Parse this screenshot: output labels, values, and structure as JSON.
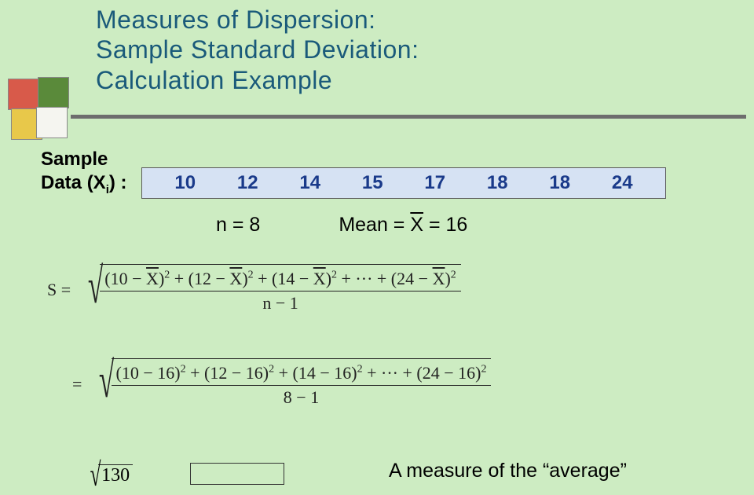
{
  "title": {
    "line1": "Measures of Dispersion:",
    "line2": "Sample Standard Deviation:",
    "line3": "Calculation Example",
    "color": "#1a5a7a",
    "fontsize": 32
  },
  "decoration": {
    "colors": {
      "red": "#d85a4a",
      "green": "#5a8a3a",
      "yellow": "#e8c84a",
      "white": "#f5f5f0"
    }
  },
  "background_color": "#cdecc2",
  "divider_color": "#6d6d6d",
  "sample_label": {
    "line1": "Sample",
    "line2_prefix": "Data  (X",
    "line2_sub": "i",
    "line2_suffix": ") :"
  },
  "data_values": [
    "10",
    "12",
    "14",
    "15",
    "17",
    "18",
    "18",
    "24"
  ],
  "data_box": {
    "bg": "#d6e2f3",
    "border": "#5a5a5a",
    "value_color": "#1a3a8a"
  },
  "stats": {
    "n_label": "n = 8",
    "mean_prefix": "Mean = ",
    "mean_x": "X",
    "mean_suffix": " = 16"
  },
  "formula1": {
    "lhs": "S",
    "terms": [
      {
        "a": "10",
        "b": "X",
        "overline": true
      },
      {
        "a": "12",
        "b": "X",
        "overline": true
      },
      {
        "a": "14",
        "b": "X",
        "overline": true
      }
    ],
    "last": {
      "a": "24",
      "b": "X",
      "overline": true
    },
    "denominator": "n − 1"
  },
  "formula2": {
    "terms": [
      {
        "a": "10",
        "b": "16"
      },
      {
        "a": "12",
        "b": "16"
      },
      {
        "a": "14",
        "b": "16"
      }
    ],
    "last": {
      "a": "24",
      "b": "16"
    },
    "denominator": "8 − 1"
  },
  "bottom": {
    "sqrt_value": "130",
    "footnote": "A measure of the “average”"
  }
}
